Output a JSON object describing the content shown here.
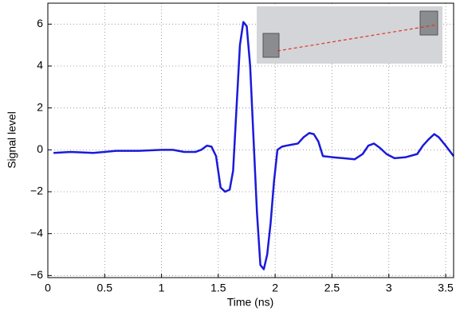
{
  "chart_data": {
    "type": "line",
    "xlabel": "Time (ns)",
    "ylabel": "Signal level",
    "x": [
      0.05,
      0.2,
      0.4,
      0.6,
      0.8,
      1.0,
      1.1,
      1.2,
      1.3,
      1.35,
      1.4,
      1.44,
      1.48,
      1.52,
      1.56,
      1.6,
      1.63,
      1.66,
      1.69,
      1.72,
      1.75,
      1.78,
      1.81,
      1.84,
      1.87,
      1.9,
      1.93,
      1.96,
      1.99,
      2.02,
      2.06,
      2.1,
      2.15,
      2.2,
      2.25,
      2.3,
      2.34,
      2.38,
      2.42,
      2.5,
      2.6,
      2.7,
      2.77,
      2.82,
      2.87,
      2.92,
      2.98,
      3.05,
      3.15,
      3.25,
      3.3,
      3.35,
      3.4,
      3.44,
      3.5,
      3.57
    ],
    "series": [
      {
        "color": "#1a1adb",
        "values": [
          -0.15,
          -0.1,
          -0.15,
          -0.05,
          -0.05,
          0.0,
          0.0,
          -0.1,
          -0.1,
          0.0,
          0.2,
          0.15,
          -0.3,
          -1.8,
          -2.0,
          -1.9,
          -1.0,
          2.0,
          5.0,
          6.1,
          5.9,
          4.0,
          0.5,
          -3.0,
          -5.5,
          -5.7,
          -5.0,
          -3.5,
          -1.5,
          0.0,
          0.15,
          0.2,
          0.25,
          0.3,
          0.6,
          0.8,
          0.75,
          0.4,
          -0.3,
          -0.35,
          -0.4,
          -0.45,
          -0.2,
          0.2,
          0.3,
          0.1,
          -0.2,
          -0.4,
          -0.35,
          -0.2,
          0.2,
          0.5,
          0.75,
          0.6,
          0.2,
          -0.3
        ]
      }
    ],
    "xlim": [
      0,
      3.57
    ],
    "ylim": [
      -6.1,
      7
    ],
    "xticks": [
      0,
      0.5,
      1,
      1.5,
      2,
      2.5,
      3,
      3.5
    ],
    "yticks": [
      {
        "value": -6,
        "label": "−6"
      },
      {
        "value": -4,
        "label": "−4"
      },
      {
        "value": -2,
        "label": "−2"
      },
      0,
      2,
      4,
      6
    ],
    "grid": true
  }
}
